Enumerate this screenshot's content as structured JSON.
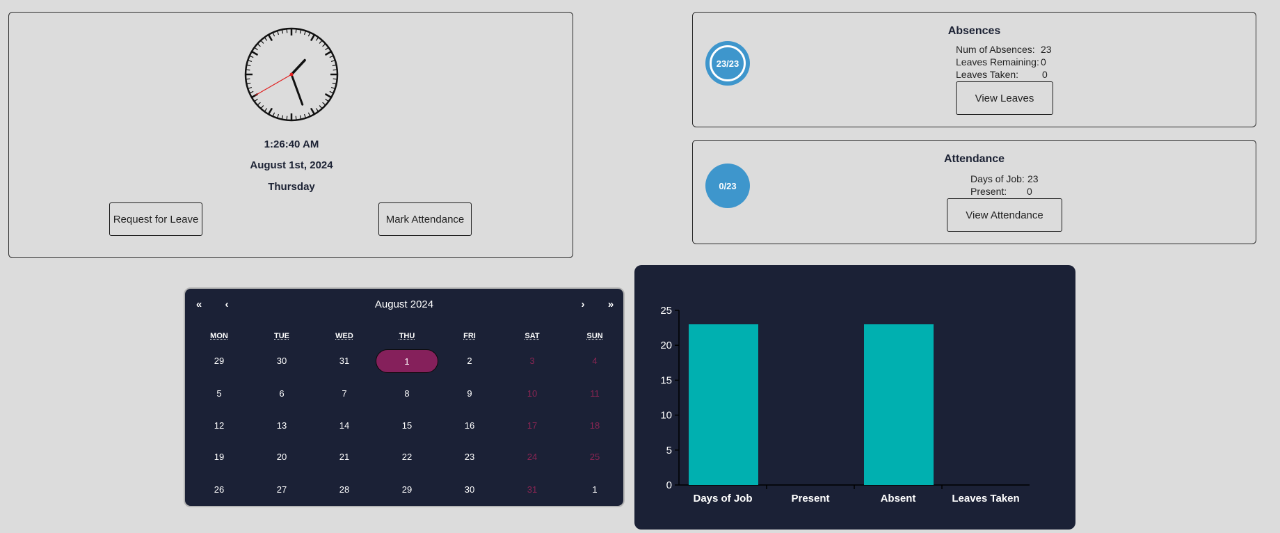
{
  "clock": {
    "time": "1:26:40 AM",
    "date": "August 1st, 2024",
    "weekday": "Thursday",
    "hours": 1,
    "minutes": 26,
    "seconds": 40,
    "second_hand_color": "#e02020"
  },
  "actions": {
    "request_leave": "Request for Leave",
    "mark_attendance": "Mark Attendance"
  },
  "absences": {
    "title": "Absences",
    "ring_text": "23/23",
    "stats": [
      {
        "label": "Num of Absences:",
        "value": "23"
      },
      {
        "label": "Leaves Remaining:",
        "value": "0"
      },
      {
        "label": "Leaves Taken:",
        "value": "0"
      }
    ],
    "button": "View Leaves"
  },
  "attendance": {
    "title": "Attendance",
    "ring_text": "0/23",
    "stats": [
      {
        "label": "Days of Job:",
        "value": "23"
      },
      {
        "label": "Present:",
        "value": "0"
      }
    ],
    "button": "View Attendance"
  },
  "calendar": {
    "title": "August 2024",
    "nav": {
      "prev_year": "«",
      "prev": "‹",
      "next": "›",
      "next_year": "»"
    },
    "weekdays": [
      "MON",
      "TUE",
      "WED",
      "THU",
      "FRI",
      "SAT",
      "SUN"
    ],
    "weeks": [
      [
        "29",
        "30",
        "31",
        "1",
        "2",
        "3",
        "4"
      ],
      [
        "5",
        "6",
        "7",
        "8",
        "9",
        "10",
        "11"
      ],
      [
        "12",
        "13",
        "14",
        "15",
        "16",
        "17",
        "18"
      ],
      [
        "19",
        "20",
        "21",
        "22",
        "23",
        "24",
        "25"
      ],
      [
        "26",
        "27",
        "28",
        "29",
        "30",
        "31",
        "1"
      ]
    ],
    "today": {
      "week": 0,
      "day": 3
    },
    "highlight_color": "#85205b",
    "weekend_color": "#8a2553"
  },
  "chart_data": {
    "type": "bar",
    "categories": [
      "Days of Job",
      "Present",
      "Absent",
      "Leaves Taken"
    ],
    "values": [
      23,
      0,
      23,
      0
    ],
    "ylim": [
      0,
      25
    ],
    "yticks": [
      0,
      5,
      10,
      15,
      20,
      25
    ],
    "bar_color": "#00b0b0",
    "grid": false
  }
}
